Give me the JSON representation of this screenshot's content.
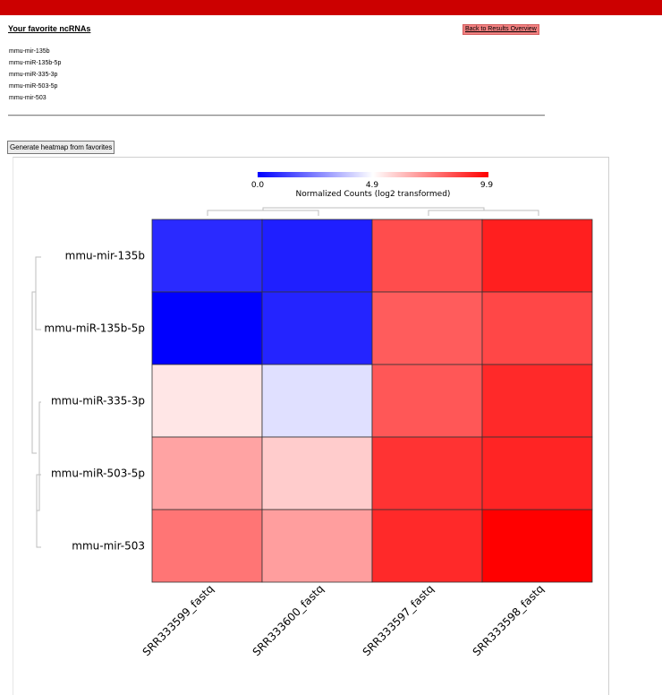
{
  "header": {
    "favorites_title": "Your favorite ncRNAs",
    "back_label": "Back to Results Overview"
  },
  "favorites": [
    "mmu-mir-135b",
    "mmu-miR-135b-5p",
    "mmu-miR-335-3p",
    "mmu-miR-503-5p",
    "mmu-mir-503"
  ],
  "generate_label": "Generate heatmap from favorites",
  "colors": {
    "low": "#0000ff",
    "mid": "#ffffff",
    "high": "#ff0000",
    "topbar": "#cc0000",
    "button": "#f28080"
  },
  "chart_data": {
    "type": "heatmap",
    "colorbar": {
      "min": 0.0,
      "mid": 4.9,
      "max": 9.9,
      "tick_labels": [
        "0.0",
        "4.9",
        "9.9"
      ],
      "label": "Normalized Counts (log2 transformed)"
    },
    "rows": [
      "mmu-mir-135b",
      "mmu-miR-135b-5p",
      "mmu-miR-335-3p",
      "mmu-miR-503-5p",
      "mmu-mir-503"
    ],
    "columns": [
      "SRR333599_fastq",
      "SRR333600_fastq",
      "SRR333597_fastq",
      "SRR333598_fastq"
    ],
    "values": [
      [
        0.8,
        0.6,
        8.4,
        9.3
      ],
      [
        0.0,
        0.7,
        8.1,
        8.5
      ],
      [
        5.4,
        4.3,
        8.2,
        9.1
      ],
      [
        6.7,
        5.9,
        8.9,
        9.2
      ],
      [
        7.6,
        6.8,
        9.1,
        9.9
      ]
    ]
  }
}
